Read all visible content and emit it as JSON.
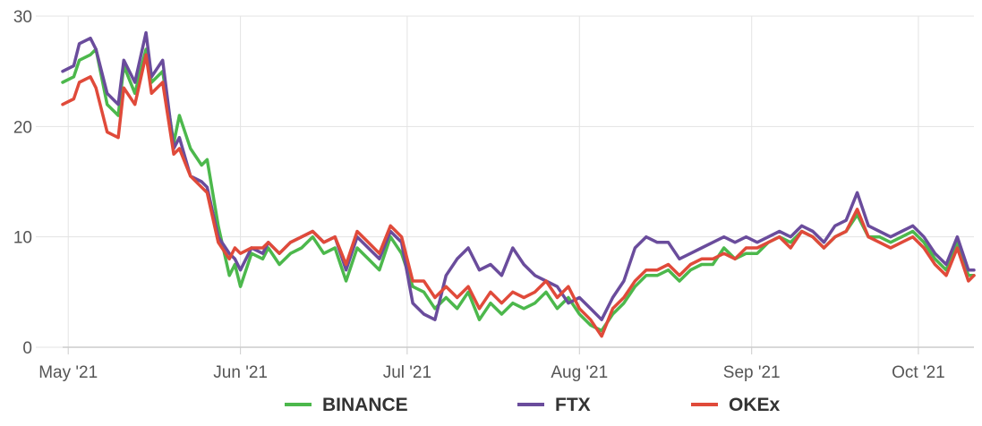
{
  "chart_data": {
    "type": "line",
    "title": "",
    "xlabel": "",
    "ylabel": "",
    "ylim": [
      0,
      30
    ],
    "xlim": [
      "2021-04-30",
      "2021-10-11"
    ],
    "y_ticks": [
      "0",
      "10",
      "20",
      "30"
    ],
    "x_ticks": [
      {
        "date": "2021-05-01",
        "label": "May '21"
      },
      {
        "date": "2021-06-01",
        "label": "Jun '21"
      },
      {
        "date": "2021-07-01",
        "label": "Jul '21"
      },
      {
        "date": "2021-08-01",
        "label": "Aug '21"
      },
      {
        "date": "2021-09-01",
        "label": "Sep '21"
      },
      {
        "date": "2021-10-01",
        "label": "Oct '21"
      }
    ],
    "grid": true,
    "legend_position": "bottom-center",
    "series": [
      {
        "name": "BINANCE",
        "color": "#4cb84c",
        "points": [
          [
            "2021-04-30",
            24.0
          ],
          [
            "2021-05-02",
            24.5
          ],
          [
            "2021-05-03",
            26.0
          ],
          [
            "2021-05-05",
            26.5
          ],
          [
            "2021-05-06",
            27.0
          ],
          [
            "2021-05-08",
            22.0
          ],
          [
            "2021-05-10",
            21.0
          ],
          [
            "2021-05-11",
            25.5
          ],
          [
            "2021-05-13",
            23.0
          ],
          [
            "2021-05-15",
            27.0
          ],
          [
            "2021-05-16",
            24.0
          ],
          [
            "2021-05-18",
            25.0
          ],
          [
            "2021-05-20",
            18.5
          ],
          [
            "2021-05-21",
            21.0
          ],
          [
            "2021-05-23",
            18.0
          ],
          [
            "2021-05-25",
            16.5
          ],
          [
            "2021-05-26",
            17.0
          ],
          [
            "2021-05-28",
            11.0
          ],
          [
            "2021-05-30",
            6.5
          ],
          [
            "2021-05-31",
            7.5
          ],
          [
            "2021-06-01",
            5.5
          ],
          [
            "2021-06-03",
            8.5
          ],
          [
            "2021-06-05",
            8.0
          ],
          [
            "2021-06-06",
            9.0
          ],
          [
            "2021-06-08",
            7.5
          ],
          [
            "2021-06-10",
            8.5
          ],
          [
            "2021-06-12",
            9.0
          ],
          [
            "2021-06-14",
            10.0
          ],
          [
            "2021-06-16",
            8.5
          ],
          [
            "2021-06-18",
            9.0
          ],
          [
            "2021-06-20",
            6.0
          ],
          [
            "2021-06-22",
            9.0
          ],
          [
            "2021-06-24",
            8.0
          ],
          [
            "2021-06-26",
            7.0
          ],
          [
            "2021-06-28",
            10.0
          ],
          [
            "2021-06-30",
            8.5
          ],
          [
            "2021-07-02",
            5.5
          ],
          [
            "2021-07-04",
            5.0
          ],
          [
            "2021-07-06",
            3.5
          ],
          [
            "2021-07-08",
            4.5
          ],
          [
            "2021-07-10",
            3.5
          ],
          [
            "2021-07-12",
            5.0
          ],
          [
            "2021-07-14",
            2.5
          ],
          [
            "2021-07-16",
            4.0
          ],
          [
            "2021-07-18",
            3.0
          ],
          [
            "2021-07-20",
            4.0
          ],
          [
            "2021-07-22",
            3.5
          ],
          [
            "2021-07-24",
            4.0
          ],
          [
            "2021-07-26",
            5.0
          ],
          [
            "2021-07-28",
            3.5
          ],
          [
            "2021-07-30",
            4.5
          ],
          [
            "2021-08-01",
            3.0
          ],
          [
            "2021-08-03",
            2.0
          ],
          [
            "2021-08-05",
            1.5
          ],
          [
            "2021-08-07",
            3.0
          ],
          [
            "2021-08-09",
            4.0
          ],
          [
            "2021-08-11",
            5.5
          ],
          [
            "2021-08-13",
            6.5
          ],
          [
            "2021-08-15",
            6.5
          ],
          [
            "2021-08-17",
            7.0
          ],
          [
            "2021-08-19",
            6.0
          ],
          [
            "2021-08-21",
            7.0
          ],
          [
            "2021-08-23",
            7.5
          ],
          [
            "2021-08-25",
            7.5
          ],
          [
            "2021-08-27",
            9.0
          ],
          [
            "2021-08-29",
            8.0
          ],
          [
            "2021-08-31",
            8.5
          ],
          [
            "2021-09-02",
            8.5
          ],
          [
            "2021-09-04",
            9.5
          ],
          [
            "2021-09-06",
            10.0
          ],
          [
            "2021-09-08",
            9.5
          ],
          [
            "2021-09-10",
            10.5
          ],
          [
            "2021-09-12",
            10.0
          ],
          [
            "2021-09-14",
            9.0
          ],
          [
            "2021-09-16",
            10.0
          ],
          [
            "2021-09-18",
            10.5
          ],
          [
            "2021-09-20",
            12.0
          ],
          [
            "2021-09-22",
            10.0
          ],
          [
            "2021-09-24",
            10.0
          ],
          [
            "2021-09-26",
            9.5
          ],
          [
            "2021-09-28",
            10.0
          ],
          [
            "2021-09-30",
            10.5
          ],
          [
            "2021-10-02",
            9.5
          ],
          [
            "2021-10-04",
            8.0
          ],
          [
            "2021-10-06",
            7.0
          ],
          [
            "2021-10-08",
            9.5
          ],
          [
            "2021-10-10",
            6.5
          ],
          [
            "2021-10-11",
            6.5
          ]
        ]
      },
      {
        "name": "FTX",
        "color": "#6a4c9c",
        "points": [
          [
            "2021-04-30",
            25.0
          ],
          [
            "2021-05-02",
            25.5
          ],
          [
            "2021-05-03",
            27.5
          ],
          [
            "2021-05-05",
            28.0
          ],
          [
            "2021-05-06",
            27.0
          ],
          [
            "2021-05-08",
            23.0
          ],
          [
            "2021-05-10",
            22.0
          ],
          [
            "2021-05-11",
            26.0
          ],
          [
            "2021-05-13",
            24.0
          ],
          [
            "2021-05-15",
            28.5
          ],
          [
            "2021-05-16",
            24.5
          ],
          [
            "2021-05-18",
            26.0
          ],
          [
            "2021-05-20",
            18.0
          ],
          [
            "2021-05-21",
            19.0
          ],
          [
            "2021-05-23",
            15.5
          ],
          [
            "2021-05-25",
            15.0
          ],
          [
            "2021-05-26",
            14.5
          ],
          [
            "2021-05-28",
            10.0
          ],
          [
            "2021-05-30",
            8.5
          ],
          [
            "2021-05-31",
            8.0
          ],
          [
            "2021-06-01",
            7.0
          ],
          [
            "2021-06-03",
            9.0
          ],
          [
            "2021-06-05",
            8.5
          ],
          [
            "2021-06-06",
            9.5
          ],
          [
            "2021-06-08",
            8.5
          ],
          [
            "2021-06-10",
            9.5
          ],
          [
            "2021-06-12",
            10.0
          ],
          [
            "2021-06-14",
            10.5
          ],
          [
            "2021-06-16",
            9.5
          ],
          [
            "2021-06-18",
            10.0
          ],
          [
            "2021-06-20",
            7.0
          ],
          [
            "2021-06-22",
            10.0
          ],
          [
            "2021-06-24",
            9.0
          ],
          [
            "2021-06-26",
            8.0
          ],
          [
            "2021-06-28",
            10.5
          ],
          [
            "2021-06-30",
            9.5
          ],
          [
            "2021-07-02",
            4.0
          ],
          [
            "2021-07-04",
            3.0
          ],
          [
            "2021-07-06",
            2.5
          ],
          [
            "2021-07-08",
            6.5
          ],
          [
            "2021-07-10",
            8.0
          ],
          [
            "2021-07-12",
            9.0
          ],
          [
            "2021-07-14",
            7.0
          ],
          [
            "2021-07-16",
            7.5
          ],
          [
            "2021-07-18",
            6.5
          ],
          [
            "2021-07-20",
            9.0
          ],
          [
            "2021-07-22",
            7.5
          ],
          [
            "2021-07-24",
            6.5
          ],
          [
            "2021-07-26",
            6.0
          ],
          [
            "2021-07-28",
            5.5
          ],
          [
            "2021-07-30",
            4.0
          ],
          [
            "2021-08-01",
            4.5
          ],
          [
            "2021-08-03",
            3.5
          ],
          [
            "2021-08-05",
            2.5
          ],
          [
            "2021-08-07",
            4.5
          ],
          [
            "2021-08-09",
            6.0
          ],
          [
            "2021-08-11",
            9.0
          ],
          [
            "2021-08-13",
            10.0
          ],
          [
            "2021-08-15",
            9.5
          ],
          [
            "2021-08-17",
            9.5
          ],
          [
            "2021-08-19",
            8.0
          ],
          [
            "2021-08-21",
            8.5
          ],
          [
            "2021-08-23",
            9.0
          ],
          [
            "2021-08-25",
            9.5
          ],
          [
            "2021-08-27",
            10.0
          ],
          [
            "2021-08-29",
            9.5
          ],
          [
            "2021-08-31",
            10.0
          ],
          [
            "2021-09-02",
            9.5
          ],
          [
            "2021-09-04",
            10.0
          ],
          [
            "2021-09-06",
            10.5
          ],
          [
            "2021-09-08",
            10.0
          ],
          [
            "2021-09-10",
            11.0
          ],
          [
            "2021-09-12",
            10.5
          ],
          [
            "2021-09-14",
            9.5
          ],
          [
            "2021-09-16",
            11.0
          ],
          [
            "2021-09-18",
            11.5
          ],
          [
            "2021-09-20",
            14.0
          ],
          [
            "2021-09-22",
            11.0
          ],
          [
            "2021-09-24",
            10.5
          ],
          [
            "2021-09-26",
            10.0
          ],
          [
            "2021-09-28",
            10.5
          ],
          [
            "2021-09-30",
            11.0
          ],
          [
            "2021-10-02",
            10.0
          ],
          [
            "2021-10-04",
            8.5
          ],
          [
            "2021-10-06",
            7.5
          ],
          [
            "2021-10-08",
            10.0
          ],
          [
            "2021-10-10",
            7.0
          ],
          [
            "2021-10-11",
            7.0
          ]
        ]
      },
      {
        "name": "OKEx",
        "color": "#e04a3a",
        "points": [
          [
            "2021-04-30",
            22.0
          ],
          [
            "2021-05-02",
            22.5
          ],
          [
            "2021-05-03",
            24.0
          ],
          [
            "2021-05-05",
            24.5
          ],
          [
            "2021-05-06",
            23.5
          ],
          [
            "2021-05-08",
            19.5
          ],
          [
            "2021-05-10",
            19.0
          ],
          [
            "2021-05-11",
            23.5
          ],
          [
            "2021-05-13",
            22.0
          ],
          [
            "2021-05-15",
            26.5
          ],
          [
            "2021-05-16",
            23.0
          ],
          [
            "2021-05-18",
            24.0
          ],
          [
            "2021-05-20",
            17.5
          ],
          [
            "2021-05-21",
            18.0
          ],
          [
            "2021-05-23",
            15.5
          ],
          [
            "2021-05-25",
            14.5
          ],
          [
            "2021-05-26",
            14.0
          ],
          [
            "2021-05-28",
            9.5
          ],
          [
            "2021-05-30",
            8.0
          ],
          [
            "2021-05-31",
            9.0
          ],
          [
            "2021-06-01",
            8.5
          ],
          [
            "2021-06-03",
            9.0
          ],
          [
            "2021-06-05",
            9.0
          ],
          [
            "2021-06-06",
            9.5
          ],
          [
            "2021-06-08",
            8.5
          ],
          [
            "2021-06-10",
            9.5
          ],
          [
            "2021-06-12",
            10.0
          ],
          [
            "2021-06-14",
            10.5
          ],
          [
            "2021-06-16",
            9.5
          ],
          [
            "2021-06-18",
            10.0
          ],
          [
            "2021-06-20",
            7.5
          ],
          [
            "2021-06-22",
            10.5
          ],
          [
            "2021-06-24",
            9.5
          ],
          [
            "2021-06-26",
            8.5
          ],
          [
            "2021-06-28",
            11.0
          ],
          [
            "2021-06-30",
            10.0
          ],
          [
            "2021-07-02",
            6.0
          ],
          [
            "2021-07-04",
            6.0
          ],
          [
            "2021-07-06",
            4.5
          ],
          [
            "2021-07-08",
            5.5
          ],
          [
            "2021-07-10",
            4.5
          ],
          [
            "2021-07-12",
            5.5
          ],
          [
            "2021-07-14",
            3.5
          ],
          [
            "2021-07-16",
            5.0
          ],
          [
            "2021-07-18",
            4.0
          ],
          [
            "2021-07-20",
            5.0
          ],
          [
            "2021-07-22",
            4.5
          ],
          [
            "2021-07-24",
            5.0
          ],
          [
            "2021-07-26",
            6.0
          ],
          [
            "2021-07-28",
            4.5
          ],
          [
            "2021-07-30",
            5.5
          ],
          [
            "2021-08-01",
            3.5
          ],
          [
            "2021-08-03",
            2.5
          ],
          [
            "2021-08-05",
            1.0
          ],
          [
            "2021-08-07",
            3.5
          ],
          [
            "2021-08-09",
            4.5
          ],
          [
            "2021-08-11",
            6.0
          ],
          [
            "2021-08-13",
            7.0
          ],
          [
            "2021-08-15",
            7.0
          ],
          [
            "2021-08-17",
            7.5
          ],
          [
            "2021-08-19",
            6.5
          ],
          [
            "2021-08-21",
            7.5
          ],
          [
            "2021-08-23",
            8.0
          ],
          [
            "2021-08-25",
            8.0
          ],
          [
            "2021-08-27",
            8.5
          ],
          [
            "2021-08-29",
            8.0
          ],
          [
            "2021-08-31",
            9.0
          ],
          [
            "2021-09-02",
            9.0
          ],
          [
            "2021-09-04",
            9.5
          ],
          [
            "2021-09-06",
            10.0
          ],
          [
            "2021-09-08",
            9.0
          ],
          [
            "2021-09-10",
            10.5
          ],
          [
            "2021-09-12",
            10.0
          ],
          [
            "2021-09-14",
            9.0
          ],
          [
            "2021-09-16",
            10.0
          ],
          [
            "2021-09-18",
            10.5
          ],
          [
            "2021-09-20",
            12.5
          ],
          [
            "2021-09-22",
            10.0
          ],
          [
            "2021-09-24",
            9.5
          ],
          [
            "2021-09-26",
            9.0
          ],
          [
            "2021-09-28",
            9.5
          ],
          [
            "2021-09-30",
            10.0
          ],
          [
            "2021-10-02",
            9.0
          ],
          [
            "2021-10-04",
            7.5
          ],
          [
            "2021-10-06",
            6.5
          ],
          [
            "2021-10-08",
            9.0
          ],
          [
            "2021-10-10",
            6.0
          ],
          [
            "2021-10-11",
            6.5
          ]
        ]
      }
    ]
  }
}
